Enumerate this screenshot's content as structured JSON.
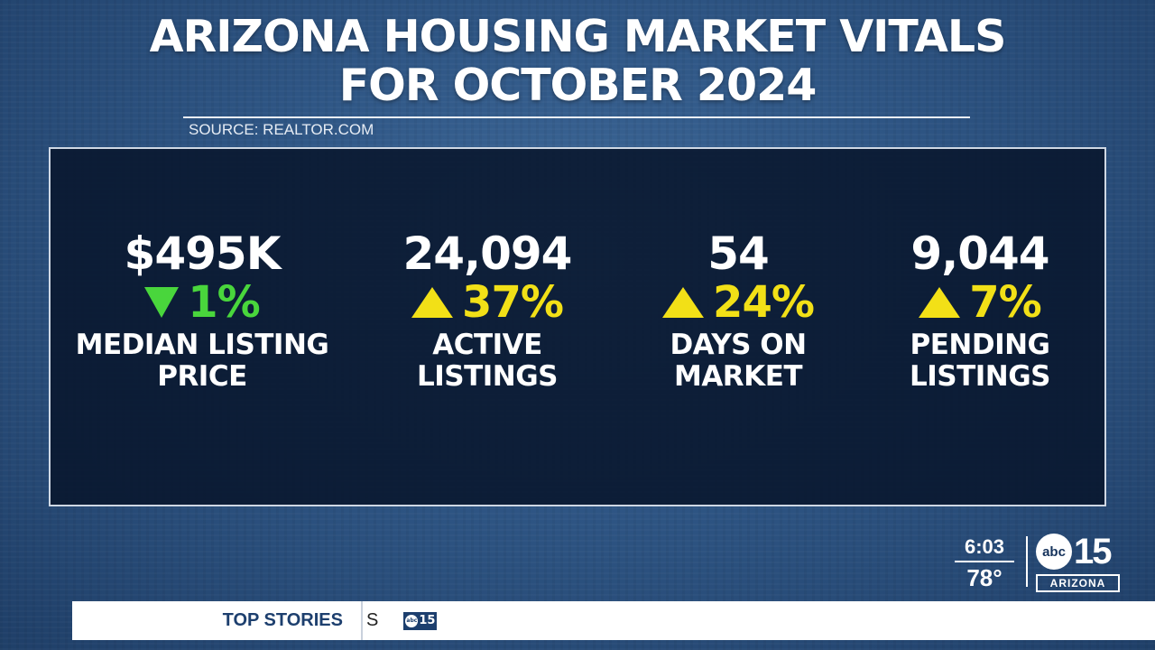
{
  "title": {
    "line1": "ARIZONA HOUSING MARKET VITALS",
    "line2": "FOR OCTOBER 2024"
  },
  "source": "SOURCE: REALTOR.COM",
  "stats": [
    {
      "value": "$495K",
      "change": "1%",
      "direction": "down",
      "color": "#49d63c",
      "label_line1": "MEDIAN LISTING",
      "label_line2": "PRICE"
    },
    {
      "value": "24,094",
      "change": "37%",
      "direction": "up",
      "color": "#f2e017",
      "label_line1": "ACTIVE",
      "label_line2": "LISTINGS"
    },
    {
      "value": "54",
      "change": "24%",
      "direction": "up",
      "color": "#f2e017",
      "label_line1": "DAYS ON",
      "label_line2": "MARKET"
    },
    {
      "value": "9,044",
      "change": "7%",
      "direction": "up",
      "color": "#f2e017",
      "label_line1": "PENDING",
      "label_line2": "LISTINGS"
    }
  ],
  "clock": {
    "time": "6:03",
    "temperature": "78°"
  },
  "station": {
    "network": "abc",
    "channel": "15",
    "state": "ARIZONA"
  },
  "ticker": {
    "label": "TOP STORIES",
    "text": "S"
  }
}
